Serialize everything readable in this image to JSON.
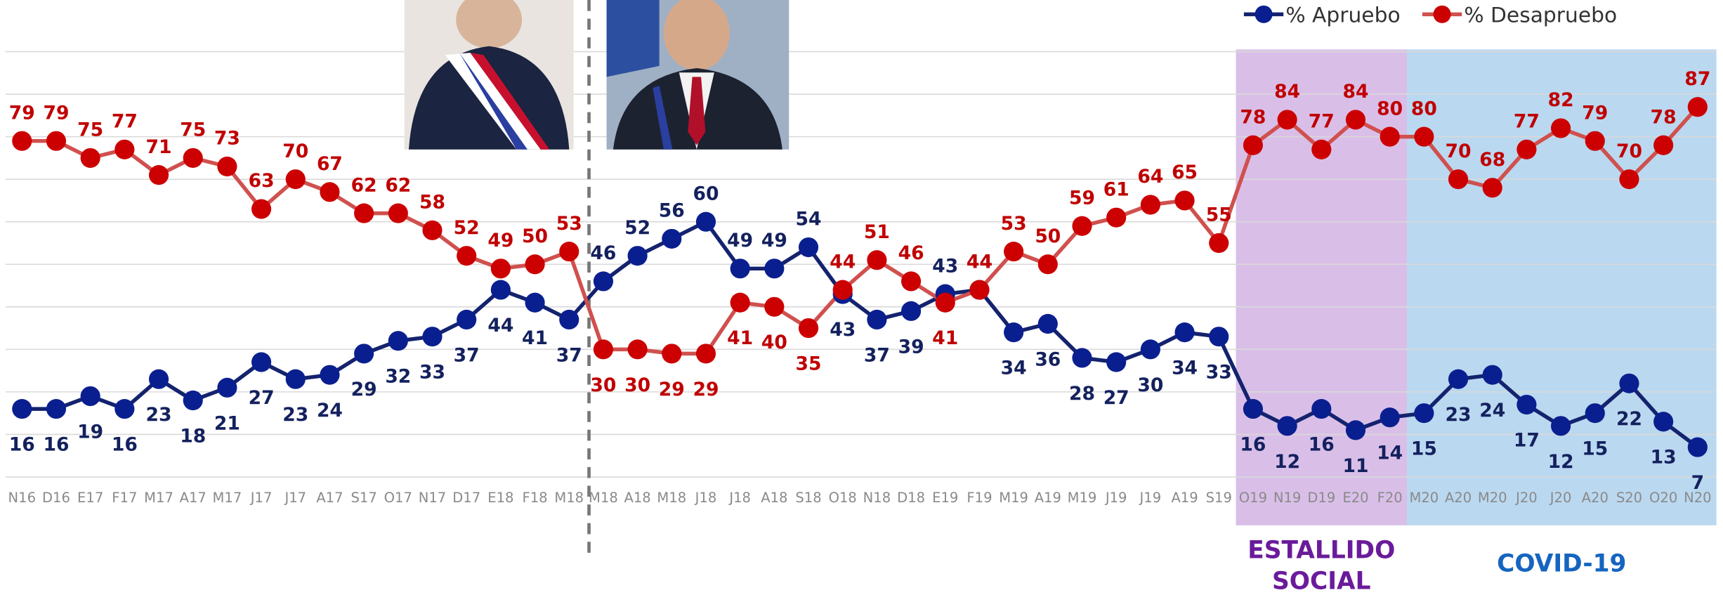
{
  "chart_data": {
    "type": "line",
    "categories": [
      "N16",
      "D16",
      "E17",
      "F17",
      "M17",
      "A17",
      "M17",
      "J17",
      "J17",
      "A17",
      "S17",
      "O17",
      "N17",
      "D17",
      "E18",
      "F18",
      "M18",
      "M18",
      "A18",
      "M18",
      "J18",
      "J18",
      "A18",
      "S18",
      "O18",
      "N18",
      "D18",
      "E19",
      "F19",
      "M19",
      "A19",
      "M19",
      "J19",
      "J19",
      "A19",
      "S19",
      "O19",
      "N19",
      "D19",
      "E20",
      "F20",
      "M20",
      "A20",
      "M20",
      "J20",
      "J20",
      "A20",
      "S20",
      "O20",
      "N20"
    ],
    "series": [
      {
        "name": "% Apruebo",
        "color": "#0a1f8f",
        "label_color": "#14215e",
        "line_color": "#14236e",
        "values": [
          16,
          16,
          19,
          16,
          23,
          18,
          21,
          27,
          23,
          24,
          29,
          32,
          33,
          37,
          44,
          41,
          37,
          46,
          52,
          56,
          60,
          49,
          49,
          54,
          43,
          37,
          39,
          43,
          44,
          34,
          36,
          28,
          27,
          30,
          34,
          33,
          16,
          12,
          16,
          11,
          14,
          15,
          23,
          24,
          17,
          12,
          15,
          22,
          13,
          7
        ]
      },
      {
        "name": "% Desapruebo",
        "color": "#cc0000",
        "label_color": "#c00000",
        "line_color": "#d0504e",
        "values": [
          79,
          79,
          75,
          77,
          71,
          75,
          73,
          63,
          70,
          67,
          62,
          62,
          58,
          52,
          49,
          50,
          53,
          30,
          30,
          29,
          29,
          41,
          40,
          35,
          44,
          51,
          46,
          41,
          44,
          53,
          50,
          59,
          61,
          64,
          65,
          55,
          78,
          84,
          77,
          84,
          80,
          80,
          70,
          68,
          77,
          82,
          79,
          70,
          78,
          87
        ]
      }
    ],
    "ylim": [
      0,
      100
    ],
    "yticks": [
      0,
      10,
      20,
      30,
      40,
      50,
      60,
      70,
      80,
      90,
      100
    ],
    "grid": true,
    "annotations": [
      {
        "lines": [
          "ESTALLIDO",
          "SOCIAL"
        ],
        "color": "#6a1b9a",
        "fill": "#d9bfe8"
      },
      {
        "lines": [
          "COVID-19"
        ],
        "color": "#1565c0",
        "fill": "#bad8f0"
      }
    ]
  }
}
